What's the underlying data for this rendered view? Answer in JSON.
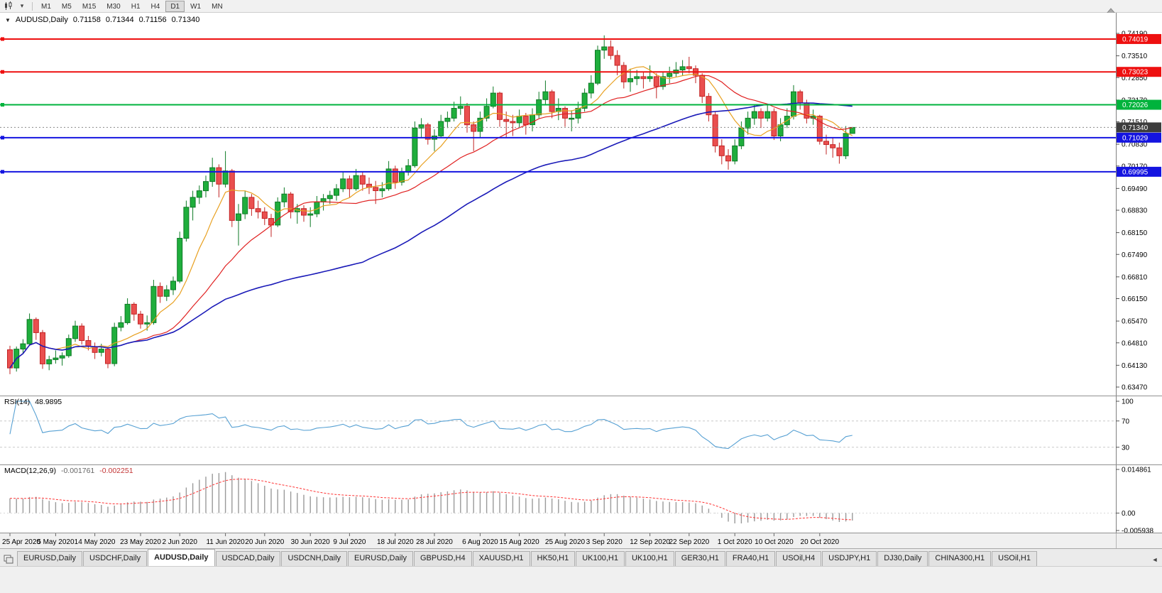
{
  "toolbar": {
    "dropdown_glyph": "▾",
    "timeframes": [
      "M1",
      "M5",
      "M15",
      "M30",
      "H1",
      "H4",
      "D1",
      "W1",
      "MN"
    ],
    "active_timeframe": "D1"
  },
  "chart_header": {
    "collapse_glyph": "▼",
    "symbol": "AUDUSD,Daily",
    "open": "0.71158",
    "high": "0.71344",
    "low": "0.71156",
    "close": "0.71340"
  },
  "rsi_panel": {
    "name": "RSI(14)",
    "value": "48.9895",
    "levels": [
      100,
      70,
      30
    ]
  },
  "macd_panel": {
    "name": "MACD(12,26,9)",
    "value_main": "-0.001761",
    "value_signal": "-0.002251",
    "scale_labels": [
      "0.014861",
      "0.00",
      "-0.005938"
    ]
  },
  "tab_bar": {
    "tabs": [
      "EURUSD,Daily",
      "USDCHF,Daily",
      "AUDUSD,Daily",
      "USDCAD,Daily",
      "USDCNH,Daily",
      "EURUSD,Daily",
      "GBPUSD,H4",
      "XAUUSD,H1",
      "HK50,H1",
      "UK100,H1",
      "UK100,H1",
      "GER30,H1",
      "FRA40,H1",
      "USOil,H4",
      "USDJPY,H1",
      "DJ30,Daily",
      "CHINA300,H1",
      "USOil,H1"
    ],
    "active_index": 2,
    "scroll_left_glyph": "◄"
  },
  "chart_data": {
    "type": "candlestick",
    "title": "AUDUSD,Daily",
    "y_ticks": [
      0.7419,
      0.7351,
      0.7285,
      0.7217,
      0.7151,
      0.7083,
      0.7017,
      0.6949,
      0.6883,
      0.6815,
      0.6749,
      0.6681,
      0.6615,
      0.6547,
      0.6481,
      0.6413,
      0.6347
    ],
    "x_tick_labels": [
      "25 Apr 2020",
      "5 May 2020",
      "14 May 2020",
      "23 May 2020",
      "2 Jun 2020",
      "11 Jun 2020",
      "20 Jun 2020",
      "30 Jun 2020",
      "9 Jul 2020",
      "18 Jul 2020",
      "28 Jul 2020",
      "6 Aug 2020",
      "15 Aug 2020",
      "25 Aug 2020",
      "3 Sep 2020",
      "12 Sep 2020",
      "22 Sep 2020",
      "1 Oct 2020",
      "10 Oct 2020",
      "20 Oct 2020"
    ],
    "x_tick_indices": [
      0,
      7,
      13,
      20,
      26,
      33,
      39,
      46,
      52,
      59,
      65,
      72,
      78,
      85,
      91,
      98,
      104,
      111,
      117,
      124
    ],
    "current_price": 0.7134,
    "hlines": [
      {
        "price": 0.74019,
        "color": "#ee1010"
      },
      {
        "price": 0.73023,
        "color": "#ee1010"
      },
      {
        "price": 0.72026,
        "color": "#00b33c"
      },
      {
        "price": 0.71029,
        "color": "#1414e0"
      },
      {
        "price": 0.69995,
        "color": "#1414e0"
      }
    ],
    "moving_averages": [
      {
        "period": 8,
        "color": "#e8a020"
      },
      {
        "period": 20,
        "color": "#e02020"
      },
      {
        "period": 55,
        "color": "#1a1ab8"
      }
    ],
    "rsi": {
      "period": 14,
      "current": 48.9895,
      "levels": [
        70,
        30
      ],
      "range": [
        0,
        100
      ],
      "color": "#56a0d3"
    },
    "macd": {
      "fast": 12,
      "slow": 26,
      "signal": 9,
      "main": -0.001761,
      "signal_value": -0.002251,
      "scale_max": 0.014861,
      "scale_min": -0.005938
    },
    "ohlc": [
      [
        0.646,
        0.6472,
        0.6386,
        0.6405
      ],
      [
        0.6405,
        0.647,
        0.6394,
        0.6462
      ],
      [
        0.6462,
        0.6492,
        0.6448,
        0.6478
      ],
      [
        0.6478,
        0.657,
        0.6472,
        0.6552
      ],
      [
        0.6552,
        0.6558,
        0.649,
        0.6512
      ],
      [
        0.6512,
        0.652,
        0.6402,
        0.6417
      ],
      [
        0.6417,
        0.6442,
        0.6398,
        0.643
      ],
      [
        0.643,
        0.6458,
        0.6418,
        0.6435
      ],
      [
        0.6435,
        0.6452,
        0.6412,
        0.6442
      ],
      [
        0.6442,
        0.6506,
        0.6436,
        0.6494
      ],
      [
        0.6494,
        0.6548,
        0.6484,
        0.6532
      ],
      [
        0.6532,
        0.654,
        0.6476,
        0.6488
      ],
      [
        0.6488,
        0.6502,
        0.6458,
        0.647
      ],
      [
        0.647,
        0.6482,
        0.6432,
        0.6452
      ],
      [
        0.6452,
        0.6478,
        0.644,
        0.6462
      ],
      [
        0.6462,
        0.6468,
        0.6404,
        0.6418
      ],
      [
        0.6418,
        0.6542,
        0.641,
        0.6528
      ],
      [
        0.6528,
        0.6562,
        0.6516,
        0.6542
      ],
      [
        0.6542,
        0.6616,
        0.6536,
        0.6598
      ],
      [
        0.6598,
        0.6604,
        0.6548,
        0.6568
      ],
      [
        0.6568,
        0.6578,
        0.6524,
        0.6538
      ],
      [
        0.6538,
        0.6564,
        0.6518,
        0.6542
      ],
      [
        0.6542,
        0.6672,
        0.6536,
        0.6652
      ],
      [
        0.6652,
        0.6664,
        0.6602,
        0.6622
      ],
      [
        0.6622,
        0.6656,
        0.6608,
        0.6642
      ],
      [
        0.6642,
        0.6682,
        0.6626,
        0.6668
      ],
      [
        0.6668,
        0.6818,
        0.6662,
        0.6798
      ],
      [
        0.6798,
        0.6912,
        0.6788,
        0.6892
      ],
      [
        0.6892,
        0.6942,
        0.6852,
        0.6922
      ],
      [
        0.6922,
        0.6958,
        0.6902,
        0.6942
      ],
      [
        0.6942,
        0.6988,
        0.6922,
        0.697
      ],
      [
        0.697,
        0.7042,
        0.6954,
        0.7012
      ],
      [
        0.7012,
        0.7022,
        0.6922,
        0.6962
      ],
      [
        0.6962,
        0.7062,
        0.6952,
        0.7002
      ],
      [
        0.7002,
        0.7008,
        0.6832,
        0.6852
      ],
      [
        0.6852,
        0.6902,
        0.6776,
        0.6872
      ],
      [
        0.6872,
        0.6942,
        0.6856,
        0.6922
      ],
      [
        0.6922,
        0.6932,
        0.6866,
        0.6888
      ],
      [
        0.6888,
        0.6912,
        0.6858,
        0.6878
      ],
      [
        0.6878,
        0.6892,
        0.6838,
        0.6858
      ],
      [
        0.6858,
        0.6872,
        0.6802,
        0.6838
      ],
      [
        0.6838,
        0.6922,
        0.6832,
        0.6908
      ],
      [
        0.6908,
        0.6952,
        0.6892,
        0.6932
      ],
      [
        0.6932,
        0.6938,
        0.6858,
        0.6878
      ],
      [
        0.6878,
        0.6902,
        0.6842,
        0.6888
      ],
      [
        0.6888,
        0.6898,
        0.6848,
        0.6868
      ],
      [
        0.6868,
        0.6892,
        0.6832,
        0.6872
      ],
      [
        0.6872,
        0.6926,
        0.6862,
        0.6908
      ],
      [
        0.6908,
        0.6932,
        0.6882,
        0.6918
      ],
      [
        0.6918,
        0.6942,
        0.6902,
        0.6928
      ],
      [
        0.6928,
        0.6962,
        0.6912,
        0.6948
      ],
      [
        0.6948,
        0.6998,
        0.6938,
        0.6978
      ],
      [
        0.6978,
        0.6988,
        0.6922,
        0.6948
      ],
      [
        0.6948,
        0.7008,
        0.6942,
        0.6988
      ],
      [
        0.6988,
        0.6998,
        0.6942,
        0.6962
      ],
      [
        0.6962,
        0.6982,
        0.6932,
        0.6952
      ],
      [
        0.6952,
        0.6972,
        0.6902,
        0.6942
      ],
      [
        0.6942,
        0.6968,
        0.6922,
        0.6948
      ],
      [
        0.6948,
        0.7032,
        0.6942,
        0.7008
      ],
      [
        0.7008,
        0.7018,
        0.6948,
        0.6968
      ],
      [
        0.6968,
        0.7012,
        0.6958,
        0.6998
      ],
      [
        0.6998,
        0.7038,
        0.6988,
        0.7018
      ],
      [
        0.7018,
        0.7152,
        0.7012,
        0.7132
      ],
      [
        0.7132,
        0.7162,
        0.7102,
        0.7142
      ],
      [
        0.7142,
        0.7148,
        0.7082,
        0.7098
      ],
      [
        0.7098,
        0.7128,
        0.7062,
        0.7108
      ],
      [
        0.7108,
        0.7172,
        0.7102,
        0.7152
      ],
      [
        0.7152,
        0.7182,
        0.7132,
        0.7162
      ],
      [
        0.7162,
        0.7212,
        0.7152,
        0.7192
      ],
      [
        0.7192,
        0.7228,
        0.7172,
        0.7198
      ],
      [
        0.7198,
        0.7208,
        0.7118,
        0.7142
      ],
      [
        0.7142,
        0.7152,
        0.7062,
        0.7122
      ],
      [
        0.7122,
        0.7182,
        0.7102,
        0.7162
      ],
      [
        0.7162,
        0.7222,
        0.7152,
        0.7198
      ],
      [
        0.7198,
        0.7258,
        0.7192,
        0.7238
      ],
      [
        0.7238,
        0.7242,
        0.7136,
        0.7158
      ],
      [
        0.7158,
        0.7182,
        0.7102,
        0.7152
      ],
      [
        0.7152,
        0.7172,
        0.7108,
        0.7148
      ],
      [
        0.7148,
        0.7188,
        0.7132,
        0.7168
      ],
      [
        0.7168,
        0.7178,
        0.7112,
        0.7142
      ],
      [
        0.7142,
        0.7192,
        0.7122,
        0.7172
      ],
      [
        0.7172,
        0.7242,
        0.7162,
        0.7218
      ],
      [
        0.7218,
        0.7276,
        0.7202,
        0.7242
      ],
      [
        0.7242,
        0.7248,
        0.7162,
        0.7182
      ],
      [
        0.7182,
        0.7222,
        0.7156,
        0.7192
      ],
      [
        0.7192,
        0.7198,
        0.7136,
        0.7162
      ],
      [
        0.7162,
        0.7186,
        0.7122,
        0.7162
      ],
      [
        0.7162,
        0.7212,
        0.7146,
        0.7192
      ],
      [
        0.7192,
        0.7252,
        0.7182,
        0.7238
      ],
      [
        0.7238,
        0.7292,
        0.7222,
        0.7268
      ],
      [
        0.7268,
        0.7382,
        0.7262,
        0.7368
      ],
      [
        0.7368,
        0.7413,
        0.7342,
        0.7378
      ],
      [
        0.7378,
        0.7398,
        0.734,
        0.7352
      ],
      [
        0.7352,
        0.7368,
        0.7292,
        0.7322
      ],
      [
        0.7322,
        0.7332,
        0.7252,
        0.7272
      ],
      [
        0.7272,
        0.7312,
        0.7242,
        0.7282
      ],
      [
        0.7282,
        0.7308,
        0.7262,
        0.7288
      ],
      [
        0.7288,
        0.7302,
        0.7252,
        0.7282
      ],
      [
        0.7282,
        0.7322,
        0.7272,
        0.7288
      ],
      [
        0.7288,
        0.7298,
        0.7222,
        0.7258
      ],
      [
        0.7258,
        0.7302,
        0.7248,
        0.7288
      ],
      [
        0.7288,
        0.7318,
        0.7268,
        0.7298
      ],
      [
        0.7298,
        0.7332,
        0.7288,
        0.7308
      ],
      [
        0.7308,
        0.7338,
        0.7292,
        0.7318
      ],
      [
        0.7318,
        0.7348,
        0.7298,
        0.7312
      ],
      [
        0.7312,
        0.7322,
        0.7268,
        0.7292
      ],
      [
        0.7292,
        0.7298,
        0.7208,
        0.7228
      ],
      [
        0.7228,
        0.7238,
        0.7152,
        0.7172
      ],
      [
        0.7172,
        0.7182,
        0.7058,
        0.7078
      ],
      [
        0.7078,
        0.7098,
        0.7022,
        0.7048
      ],
      [
        0.7048,
        0.7068,
        0.7006,
        0.7032
      ],
      [
        0.7032,
        0.7098,
        0.7022,
        0.7078
      ],
      [
        0.7078,
        0.7152,
        0.7068,
        0.7132
      ],
      [
        0.7132,
        0.7182,
        0.7112,
        0.7162
      ],
      [
        0.7162,
        0.7202,
        0.7142,
        0.7182
      ],
      [
        0.7182,
        0.7192,
        0.7132,
        0.7162
      ],
      [
        0.7162,
        0.7202,
        0.7152,
        0.7182
      ],
      [
        0.7182,
        0.7192,
        0.7096,
        0.7108
      ],
      [
        0.7108,
        0.7162,
        0.7092,
        0.7142
      ],
      [
        0.7142,
        0.7192,
        0.7132,
        0.7168
      ],
      [
        0.7168,
        0.7262,
        0.7158,
        0.7242
      ],
      [
        0.7242,
        0.7248,
        0.7188,
        0.7208
      ],
      [
        0.7208,
        0.7218,
        0.7146,
        0.7162
      ],
      [
        0.7162,
        0.7188,
        0.7142,
        0.7168
      ],
      [
        0.7168,
        0.7172,
        0.7082,
        0.7092
      ],
      [
        0.7092,
        0.7112,
        0.7052,
        0.7082
      ],
      [
        0.7082,
        0.7102,
        0.7042,
        0.7072
      ],
      [
        0.7072,
        0.7088,
        0.7024,
        0.7048
      ],
      [
        0.7048,
        0.7138,
        0.7038,
        0.7116
      ],
      [
        0.71158,
        0.71344,
        0.71156,
        0.7134
      ]
    ]
  }
}
